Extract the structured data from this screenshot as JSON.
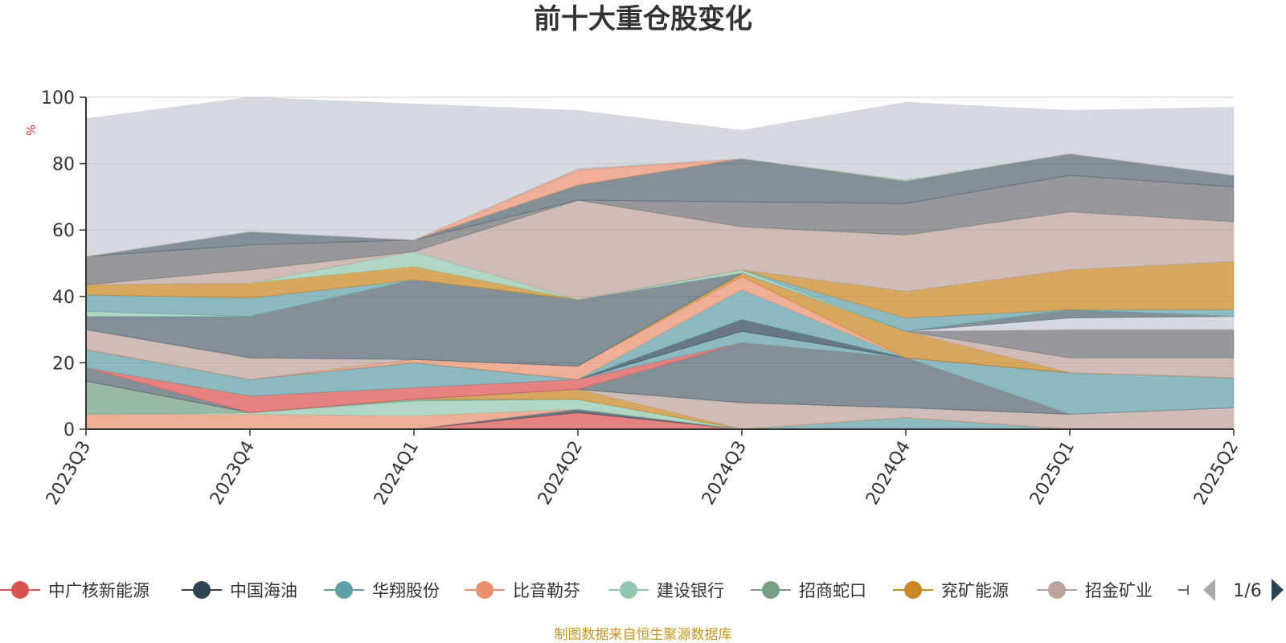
{
  "chart_data": {
    "type": "area",
    "title": "前十大重仓股变化",
    "ylabel": "%",
    "ylim": [
      0,
      100
    ],
    "y_ticks": [
      0,
      20,
      40,
      60,
      80,
      100
    ],
    "grid": true,
    "categories": [
      "2023Q3",
      "2023Q4",
      "2024Q1",
      "2024Q2",
      "2024Q3",
      "2024Q4",
      "2025Q1",
      "2025Q2"
    ],
    "series": [
      {
        "name": "中广核新能源",
        "color": "#d9534f",
        "values": [
          0.0,
          0.0,
          0.0,
          5.0,
          0.0,
          0.0,
          0.0,
          0.0
        ]
      },
      {
        "name": "中国海油",
        "color": "#2f4554",
        "values": [
          0.0,
          0.0,
          0.0,
          1.0,
          0.0,
          0.0,
          0.0,
          0.0
        ]
      },
      {
        "name": "华翔股份",
        "color": "#61a0a8",
        "values": [
          0.0,
          0.0,
          0.0,
          0.0,
          0.0,
          3.5,
          0.0,
          0.0
        ]
      },
      {
        "name": "比音勒芬",
        "color": "#e8906e",
        "values": [
          4.5,
          4.5,
          4.0,
          0.0,
          0.0,
          0.0,
          0.0,
          0.0
        ]
      },
      {
        "name": "建设银行",
        "color": "#91c7ae",
        "values": [
          0.0,
          0.5,
          4.5,
          3.0,
          0.0,
          0.0,
          0.0,
          0.0
        ]
      },
      {
        "name": "招商蛇口",
        "color": "#749f83",
        "values": [
          10.0,
          0.0,
          0.5,
          0.0,
          0.0,
          0.0,
          0.0,
          0.0
        ]
      },
      {
        "name": "兖矿能源",
        "color": "#ca8622",
        "values": [
          0.0,
          0.0,
          0.0,
          3.0,
          0.0,
          0.0,
          0.0,
          0.0
        ]
      },
      {
        "name": "招金矿业",
        "color": "#bda29a",
        "values": [
          0.0,
          0.0,
          0.0,
          0.0,
          8.0,
          3.0,
          4.5,
          6.5
        ]
      },
      {
        "name": "",
        "color": "#6e7074",
        "values": [
          0.0,
          0.0,
          0.0,
          0.0,
          0.0,
          0.0,
          0.0,
          0.0
        ]
      },
      {
        "name": "",
        "color": "#546570",
        "values": [
          4.0,
          0.0,
          0.0,
          0.0,
          18.0,
          15.0,
          0.0,
          0.0
        ]
      },
      {
        "name": "",
        "color": "#c4ccd3",
        "values": [
          0.0,
          0.0,
          0.0,
          0.0,
          0.0,
          0.0,
          0.0,
          0.0
        ]
      },
      {
        "name": "",
        "color": "#d9534f",
        "values": [
          0.0,
          5.0,
          3.5,
          3.0,
          0.0,
          0.0,
          0.0,
          0.0
        ]
      },
      {
        "name": "",
        "color": "#61a0a8",
        "values": [
          5.5,
          5.0,
          7.5,
          0.0,
          3.5,
          0.0,
          12.5,
          9.0
        ]
      },
      {
        "name": "",
        "color": "#2f4554",
        "values": [
          0.0,
          0.0,
          0.0,
          0.0,
          3.5,
          0.0,
          0.0,
          0.0
        ]
      },
      {
        "name": "",
        "color": "#61a0a8",
        "values": [
          0.0,
          0.0,
          0.0,
          0.0,
          9.0,
          0.0,
          0.0,
          0.0
        ]
      },
      {
        "name": "",
        "color": "#e8906e",
        "values": [
          0.0,
          0.0,
          1.0,
          4.0,
          4.0,
          0.0,
          0.0,
          0.0
        ]
      },
      {
        "name": "",
        "color": "#ca8622",
        "values": [
          0.0,
          0.0,
          0.0,
          0.0,
          1.0,
          8.0,
          0.0,
          0.0
        ]
      },
      {
        "name": "",
        "color": "#bda29a",
        "values": [
          6.0,
          6.5,
          0.0,
          0.0,
          0.0,
          0.0,
          4.5,
          6.0
        ]
      },
      {
        "name": "",
        "color": "#6e7074",
        "values": [
          0.0,
          0.0,
          0.0,
          0.0,
          0.0,
          0.0,
          8.5,
          8.5
        ]
      },
      {
        "name": "",
        "color": "#c4ccd3",
        "values": [
          0.0,
          0.0,
          0.0,
          0.0,
          0.0,
          0.0,
          3.5,
          4.0
        ]
      },
      {
        "name": "",
        "color": "#546570",
        "values": [
          4.0,
          12.5,
          24.0,
          20.0,
          0.0,
          0.0,
          2.5,
          0.0
        ]
      },
      {
        "name": "",
        "color": "#91c7ae",
        "values": [
          1.5,
          0.0,
          0.0,
          0.0,
          1.0,
          0.0,
          0.0,
          0.0
        ]
      },
      {
        "name": "",
        "color": "#61a0a8",
        "values": [
          5.0,
          5.5,
          0.0,
          0.0,
          0.0,
          4.0,
          0.0,
          2.0
        ]
      },
      {
        "name": "",
        "color": "#ca8622",
        "values": [
          3.0,
          4.5,
          4.0,
          0.0,
          0.0,
          8.0,
          12.0,
          14.5
        ]
      },
      {
        "name": "",
        "color": "#91c7ae",
        "values": [
          0.0,
          0.0,
          4.5,
          0.0,
          0.0,
          0.0,
          0.0,
          0.0
        ]
      },
      {
        "name": "",
        "color": "#bda29a",
        "values": [
          0.0,
          4.0,
          0.0,
          30.0,
          13.0,
          17.0,
          17.5,
          12.0
        ]
      },
      {
        "name": "",
        "color": "#6e7074",
        "values": [
          8.5,
          7.5,
          3.5,
          0.0,
          7.5,
          9.5,
          11.0,
          10.5
        ]
      },
      {
        "name": "",
        "color": "#546570",
        "values": [
          0.0,
          4.0,
          0.0,
          4.5,
          13.0,
          6.5,
          6.5,
          3.5
        ]
      },
      {
        "name": "",
        "color": "#749f83",
        "values": [
          0.0,
          0.0,
          0.0,
          0.0,
          0.0,
          0.5,
          0.0,
          0.0
        ]
      },
      {
        "name": "",
        "color": "#e8906e",
        "values": [
          0.0,
          0.0,
          0.0,
          4.5,
          0.0,
          0.0,
          0.0,
          0.0
        ]
      },
      {
        "name": "",
        "color": "#bda29a",
        "values": [
          0.0,
          0.0,
          0.0,
          0.5,
          0.0,
          0.0,
          0.0,
          0.0
        ]
      },
      {
        "name": "",
        "color": "#c4ccd3",
        "values": [
          41.5,
          40.5,
          41.0,
          17.5,
          8.5,
          23.5,
          13.0,
          20.5
        ]
      }
    ]
  },
  "legend": {
    "items": [
      {
        "name": "中广核新能源",
        "color": "#d9534f"
      },
      {
        "name": "中国海油",
        "color": "#2f4554"
      },
      {
        "name": "华翔股份",
        "color": "#61a0a8"
      },
      {
        "name": "比音勒芬",
        "color": "#e8906e"
      },
      {
        "name": "建设银行",
        "color": "#91c7ae"
      },
      {
        "name": "招商蛇口",
        "color": "#749f83"
      },
      {
        "name": "兖矿能源",
        "color": "#ca8622"
      },
      {
        "name": "招金矿业",
        "color": "#bda29a"
      }
    ],
    "page": "1/6"
  },
  "source": "制图数据来自恒生聚源数据库"
}
